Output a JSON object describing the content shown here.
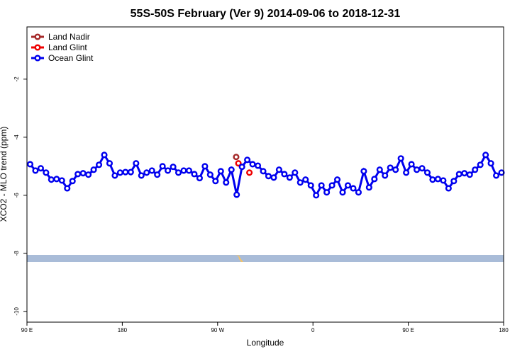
{
  "chart_data": {
    "type": "line",
    "title": "55S-50S February (Ver 9)   2014-09-06 to 2018-12-31",
    "x_label": "Longitude",
    "y_label": "XCO2 - MLO trend (ppm)",
    "xlim": [
      90,
      540
    ],
    "ylim": [
      -10.37,
      -0.2
    ],
    "xticks": [
      {
        "value": 90,
        "label": "90 E"
      },
      180,
      {
        "value": 270,
        "label": "90 W"
      },
      {
        "value": 360,
        "label": "0"
      },
      {
        "value": 450,
        "label": "90 E"
      },
      {
        "value": 540,
        "label": "180"
      }
    ],
    "yticks": [
      -2,
      -4,
      -6,
      -8,
      -10
    ],
    "legend": "top-left",
    "series": [
      {
        "name": "Land Nadir",
        "color": "#a52a2a",
        "x": [
          287.5
        ],
        "values": [
          -4.68
        ]
      },
      {
        "name": "Land Glint",
        "color": "#ee0000",
        "x": [
          289.6,
          300
        ],
        "values": [
          -4.9,
          -5.22
        ]
      },
      {
        "name": "Ocean Glint",
        "color": "#0000ee",
        "x": [
          93,
          98,
          103,
          108,
          113,
          118,
          123,
          128,
          133,
          138,
          143,
          148,
          153,
          158,
          163,
          168,
          173,
          178,
          183,
          188,
          193,
          198,
          203,
          208,
          213,
          218,
          223,
          228,
          233,
          238,
          243,
          248,
          253,
          258,
          263,
          268,
          273,
          278,
          283,
          288,
          293,
          298,
          303,
          308,
          313,
          318,
          323,
          328,
          333,
          338,
          343,
          348,
          353,
          358,
          363,
          368,
          373,
          378,
          383,
          388,
          393,
          398,
          403,
          408,
          413,
          418,
          423,
          428,
          433,
          438,
          443,
          448,
          453,
          458,
          463,
          468,
          473,
          478,
          483,
          488,
          493,
          498,
          503,
          508,
          513,
          518,
          523,
          528,
          533,
          538
        ],
        "values": [
          -4.93,
          -5.15,
          -5.07,
          -5.22,
          -5.46,
          -5.44,
          -5.49,
          -5.76,
          -5.51,
          -5.27,
          -5.24,
          -5.29,
          -5.12,
          -4.95,
          -4.61,
          -4.9,
          -5.32,
          -5.22,
          -5.2,
          -5.2,
          -4.9,
          -5.32,
          -5.22,
          -5.15,
          -5.29,
          -5.0,
          -5.15,
          -5.02,
          -5.22,
          -5.15,
          -5.15,
          -5.27,
          -5.41,
          -5.0,
          -5.29,
          -5.51,
          -5.17,
          -5.56,
          -5.12,
          -5.98,
          -5.02,
          -4.78,
          -4.93,
          -4.98,
          -5.17,
          -5.34,
          -5.39,
          -5.12,
          -5.27,
          -5.39,
          -5.22,
          -5.56,
          -5.46,
          -5.66,
          -6.0,
          -5.66,
          -5.9,
          -5.66,
          -5.46,
          -5.9,
          -5.66,
          -5.76,
          -5.9,
          -5.17,
          -5.73,
          -5.44,
          -5.12,
          -5.32,
          -5.05,
          -5.12,
          -4.73,
          -5.22,
          -4.93,
          -5.12,
          -5.07,
          -5.22,
          -5.46,
          -5.44,
          -5.49,
          -5.76,
          -5.51,
          -5.27,
          -5.24,
          -5.29,
          -5.12,
          -4.95,
          -4.61,
          -4.9,
          -5.32,
          -5.22
        ]
      }
    ]
  }
}
